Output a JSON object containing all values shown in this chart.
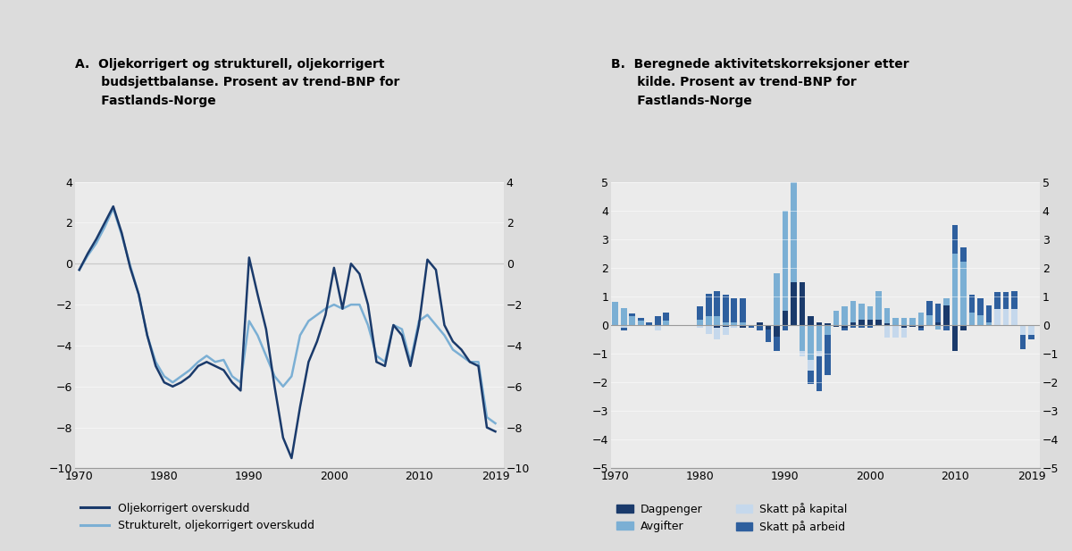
{
  "panel_A_title": "A.   Oljekorrigert og strukturell, oljekorrigert\n      budsjettbalanse. Prosent av trend-BNP for\n      Fastlands-Norge",
  "panel_B_title": "B.   Beregnede aktivitetskorreksjoner etter\n      kilde. Prosent av trend-BNP for\n      Fastlands-Norge",
  "background_color": "#dcdcdc",
  "plot_bg_color": "#ebebeb",
  "line1_color": "#1a3a6b",
  "line2_color": "#7bafd4",
  "color_dagpenger": "#1a3a6b",
  "color_avgifter": "#7bafd4",
  "color_kapital": "#c5d8ec",
  "color_arbeid": "#2e5f9e",
  "years_A": [
    1970,
    1971,
    1972,
    1973,
    1974,
    1975,
    1976,
    1977,
    1978,
    1979,
    1980,
    1981,
    1982,
    1983,
    1984,
    1985,
    1986,
    1987,
    1988,
    1989,
    1990,
    1991,
    1992,
    1993,
    1994,
    1995,
    1996,
    1997,
    1998,
    1999,
    2000,
    2001,
    2002,
    2003,
    2004,
    2005,
    2006,
    2007,
    2008,
    2009,
    2010,
    2011,
    2012,
    2013,
    2014,
    2015,
    2016,
    2017,
    2018,
    2019
  ],
  "line1_values": [
    -0.3,
    0.5,
    1.2,
    2.0,
    2.8,
    1.5,
    -0.2,
    -1.5,
    -3.5,
    -5.0,
    -5.8,
    -6.0,
    -5.8,
    -5.5,
    -5.0,
    -4.8,
    -5.0,
    -5.2,
    -5.8,
    -6.2,
    0.3,
    -1.5,
    -3.2,
    -6.0,
    -8.5,
    -9.5,
    -7.0,
    -4.8,
    -3.8,
    -2.5,
    -0.2,
    -2.2,
    0.0,
    -0.5,
    -2.0,
    -4.8,
    -5.0,
    -3.0,
    -3.5,
    -5.0,
    -3.0,
    0.2,
    -0.3,
    -3.0,
    -3.8,
    -4.2,
    -4.8,
    -5.0,
    -8.0,
    -8.2
  ],
  "line2_values": [
    -0.3,
    0.4,
    1.0,
    1.8,
    2.7,
    1.4,
    -0.1,
    -1.5,
    -3.5,
    -4.8,
    -5.5,
    -5.8,
    -5.5,
    -5.2,
    -4.8,
    -4.5,
    -4.8,
    -4.7,
    -5.5,
    -5.8,
    -2.8,
    -3.5,
    -4.5,
    -5.5,
    -6.0,
    -5.5,
    -3.5,
    -2.8,
    -2.5,
    -2.2,
    -2.0,
    -2.2,
    -2.0,
    -2.0,
    -3.0,
    -4.5,
    -4.8,
    -3.0,
    -3.2,
    -4.8,
    -2.8,
    -2.5,
    -3.0,
    -3.5,
    -4.2,
    -4.5,
    -4.8,
    -4.8,
    -7.5,
    -7.8
  ],
  "years_B": [
    1970,
    1971,
    1972,
    1973,
    1974,
    1975,
    1976,
    1977,
    1978,
    1979,
    1980,
    1981,
    1982,
    1983,
    1984,
    1985,
    1986,
    1987,
    1988,
    1989,
    1990,
    1991,
    1992,
    1993,
    1994,
    1995,
    1996,
    1997,
    1998,
    1999,
    2000,
    2001,
    2002,
    2003,
    2004,
    2005,
    2006,
    2007,
    2008,
    2009,
    2010,
    2011,
    2012,
    2013,
    2014,
    2015,
    2016,
    2017,
    2018,
    2019
  ],
  "dagpenger": [
    0.0,
    0.0,
    0.0,
    0.0,
    0.0,
    0.0,
    0.0,
    0.0,
    0.0,
    0.0,
    0.0,
    0.0,
    -0.1,
    -0.05,
    0.0,
    -0.1,
    0.0,
    0.1,
    -0.15,
    -0.4,
    0.5,
    1.5,
    1.5,
    0.3,
    0.1,
    0.05,
    -0.05,
    -0.1,
    0.1,
    0.2,
    0.2,
    0.2,
    0.05,
    0.0,
    -0.1,
    -0.05,
    -0.1,
    0.0,
    0.1,
    0.7,
    -0.9,
    -0.2,
    0.0,
    0.0,
    0.0,
    0.0,
    0.0,
    0.0,
    0.0,
    0.0
  ],
  "avgifter": [
    0.8,
    0.6,
    0.3,
    0.15,
    0.0,
    0.0,
    0.15,
    0.0,
    0.0,
    0.0,
    0.2,
    0.3,
    0.3,
    0.1,
    0.1,
    0.1,
    0.0,
    0.0,
    0.0,
    1.8,
    3.5,
    3.7,
    -0.9,
    -1.2,
    -0.9,
    -0.35,
    0.5,
    0.65,
    0.75,
    0.55,
    0.45,
    1.0,
    0.55,
    0.25,
    0.25,
    0.25,
    0.45,
    0.35,
    -0.15,
    0.25,
    2.5,
    2.2,
    0.45,
    0.35,
    0.1,
    0.0,
    0.0,
    0.0,
    0.0,
    0.0
  ],
  "kapital": [
    0.0,
    -0.1,
    0.0,
    0.0,
    0.0,
    -0.2,
    0.0,
    0.0,
    0.0,
    0.0,
    -0.1,
    -0.3,
    -0.4,
    -0.3,
    -0.1,
    0.0,
    0.0,
    0.0,
    0.0,
    0.0,
    0.0,
    0.0,
    -0.2,
    -0.4,
    -0.2,
    0.0,
    0.0,
    0.0,
    0.0,
    0.0,
    0.0,
    0.0,
    -0.45,
    -0.45,
    -0.35,
    0.0,
    0.0,
    0.0,
    0.0,
    0.0,
    0.0,
    0.0,
    0.0,
    0.0,
    0.0,
    0.55,
    0.55,
    0.55,
    -0.35,
    -0.35
  ],
  "arbeid": [
    0.0,
    -0.1,
    0.1,
    0.1,
    0.1,
    0.3,
    0.3,
    0.0,
    0.0,
    0.0,
    0.45,
    0.8,
    0.9,
    0.95,
    0.85,
    0.85,
    -0.1,
    -0.2,
    -0.45,
    -0.5,
    -0.2,
    0.0,
    0.0,
    -0.45,
    -1.2,
    -1.4,
    0.0,
    -0.1,
    -0.1,
    -0.1,
    -0.1,
    0.0,
    0.0,
    0.0,
    0.0,
    0.0,
    -0.1,
    0.5,
    0.65,
    -0.2,
    1.0,
    0.5,
    0.6,
    0.6,
    0.6,
    0.6,
    0.6,
    0.65,
    -0.5,
    -0.15
  ]
}
